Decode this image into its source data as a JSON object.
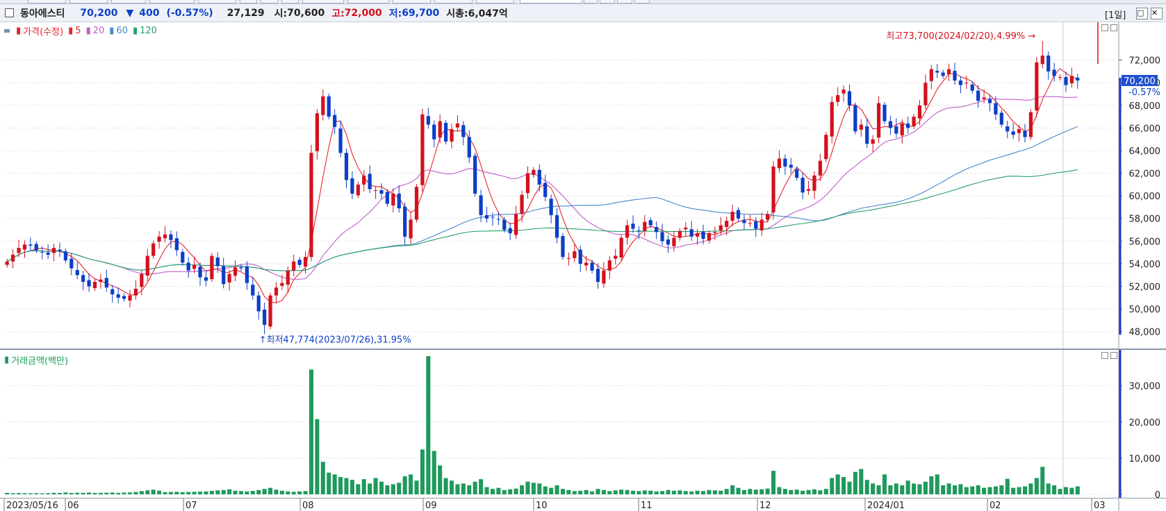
{
  "header": {
    "stock_name": "동아에스티",
    "price": "70,200",
    "change_arrow": "▼",
    "change": "400",
    "change_pct": "(-0.57%)",
    "volume": "27,129",
    "open_label": "시:",
    "open": "70,600",
    "high_label": "고:",
    "high": "72,000",
    "low_label": "저:",
    "low": "69,700",
    "mktcap_label": "시총:",
    "mktcap": "6,047억",
    "period": "[1일]",
    "colors": {
      "up": "#d3121e",
      "down": "#0b3fc7"
    }
  },
  "price_pane": {
    "legend_title": "가격(수정)",
    "ma_labels": [
      "5",
      "20",
      "60",
      "120"
    ],
    "ma_colors": [
      "#e8232a",
      "#c05cc9",
      "#4a86c8",
      "#27a06a"
    ],
    "high_annotation": "최고73,700(2024/02/20),4.99%",
    "low_annotation": "최저47,774(2023/07/26),31.95%",
    "current_price_tag": "70,200",
    "current_pct_tag": "-0.57%",
    "y_ticks": [
      "72,000",
      "70,000",
      "68,000",
      "66,000",
      "64,000",
      "62,000",
      "60,000",
      "58,000",
      "56,000",
      "54,000",
      "52,000",
      "50,000",
      "48,000"
    ]
  },
  "volume_pane": {
    "legend_title": "거래금액(백만)",
    "bar_color": "#1f9a5c",
    "y_ticks": [
      "30,000",
      "20,000",
      "10,000",
      "0"
    ]
  },
  "x_axis": {
    "labels": [
      "2023/05/16",
      "06",
      "07",
      "08",
      "09",
      "10",
      "11",
      "12",
      "2024/01",
      "02",
      "03"
    ]
  },
  "chart_data": [
    {
      "type": "candlestick",
      "title": "가격(수정)",
      "x_range": [
        "2023/05/16",
        "2024/02/29"
      ],
      "ylim": [
        47000,
        74000
      ],
      "series": [
        {
          "name": "5",
          "color": "#e8232a"
        },
        {
          "name": "20",
          "color": "#c05cc9"
        },
        {
          "name": "60",
          "color": "#4a86c8"
        },
        {
          "name": "120",
          "color": "#27a06a"
        }
      ],
      "close": [
        54200,
        54800,
        55400,
        55700,
        55600,
        55200,
        55000,
        54800,
        55400,
        55100,
        54300,
        53600,
        53000,
        52400,
        52000,
        52400,
        52600,
        51900,
        51300,
        51000,
        50900,
        51200,
        51800,
        53100,
        54700,
        55800,
        56400,
        56600,
        56100,
        55200,
        54100,
        53400,
        53900,
        52800,
        52500,
        54700,
        53800,
        52200,
        53100,
        53700,
        53600,
        52300,
        51200,
        49800,
        48600,
        51200,
        51900,
        52300,
        53400,
        54200,
        53900,
        54600,
        63800,
        67300,
        68800,
        67000,
        66100,
        63800,
        61400,
        60200,
        61000,
        61800,
        60600,
        60500,
        60200,
        59300,
        60200,
        58900,
        56400,
        57900,
        60800,
        67200,
        66300,
        65000,
        66600,
        64800,
        65900,
        66400,
        65200,
        63400,
        60200,
        58300,
        58000,
        58100,
        57900,
        57000,
        56700,
        58400,
        60100,
        62000,
        62300,
        61000,
        59900,
        58300,
        56300,
        54600,
        54500,
        55100,
        54000,
        54100,
        53400,
        52400,
        53400,
        54300,
        54700,
        56300,
        57400,
        57100,
        56900,
        57700,
        57400,
        56800,
        56000,
        55700,
        56300,
        56900,
        57200,
        56400,
        56700,
        56200,
        56700,
        56800,
        57400,
        57800,
        58600,
        58000,
        57600,
        57600,
        57100,
        57900,
        58400,
        62600,
        63300,
        62600,
        62500,
        61600,
        60300,
        60600,
        61800,
        63100,
        65400,
        68300,
        68900,
        69400,
        68000,
        65700,
        66300,
        64600,
        65000,
        68200,
        66600,
        66000,
        65500,
        66400,
        66000,
        67000,
        68000,
        70000,
        71200,
        70900,
        70600,
        71200,
        70200,
        69800,
        70000,
        69300,
        68400,
        68700,
        68200,
        67200,
        66300,
        65700,
        65400,
        65900,
        65200,
        67400,
        71800,
        72400,
        71000,
        70600,
        70500,
        69800,
        70600,
        70200
      ],
      "volume_ylim": [
        0,
        38000
      ],
      "volume": [
        400,
        300,
        350,
        300,
        280,
        320,
        250,
        300,
        420,
        380,
        500,
        380,
        450,
        430,
        500,
        380,
        420,
        450,
        500,
        400,
        480,
        520,
        650,
        900,
        1100,
        1300,
        1000,
        600,
        650,
        700,
        600,
        650,
        700,
        750,
        800,
        950,
        1100,
        1200,
        1400,
        1000,
        900,
        800,
        950,
        1200,
        1500,
        1800,
        1300,
        1000,
        800,
        700,
        800,
        900,
        34500,
        20800,
        9000,
        6000,
        5500,
        4800,
        4500,
        4000,
        2800,
        4200,
        3000,
        4500,
        3500,
        2500,
        2800,
        3200,
        5000,
        5500,
        3800,
        12400,
        38200,
        12000,
        8000,
        4500,
        3800,
        2800,
        3000,
        2500,
        3500,
        4200,
        2000,
        1500,
        1800,
        1200,
        1400,
        1600,
        2500,
        3500,
        3200,
        3000,
        2200,
        1800,
        2500,
        1500,
        1200,
        900,
        1000,
        1200,
        800,
        1500,
        1200,
        900,
        1100,
        1300,
        1200,
        1000,
        900,
        1100,
        1000,
        800,
        900,
        1200,
        1000,
        1100,
        900,
        800,
        1000,
        900,
        1200,
        1100,
        1000,
        1500,
        2500,
        1800,
        1200,
        1500,
        1300,
        1400,
        1600,
        6500,
        2000,
        1500,
        1200,
        1300,
        1000,
        1200,
        1400,
        1100,
        1500,
        4500,
        5500,
        4800,
        3500,
        6200,
        7000,
        4000,
        3000,
        2500,
        5500,
        2500,
        3000,
        2500,
        3800,
        3000,
        2800,
        3500,
        5000,
        5500,
        2500,
        3000,
        2500,
        2800,
        2000,
        2200,
        2500,
        1800,
        2000,
        2200,
        2500,
        4300,
        1800,
        2000,
        2200,
        3000,
        4500,
        7600,
        3000,
        2500,
        1500,
        2000,
        1800,
        2200
      ]
    }
  ]
}
